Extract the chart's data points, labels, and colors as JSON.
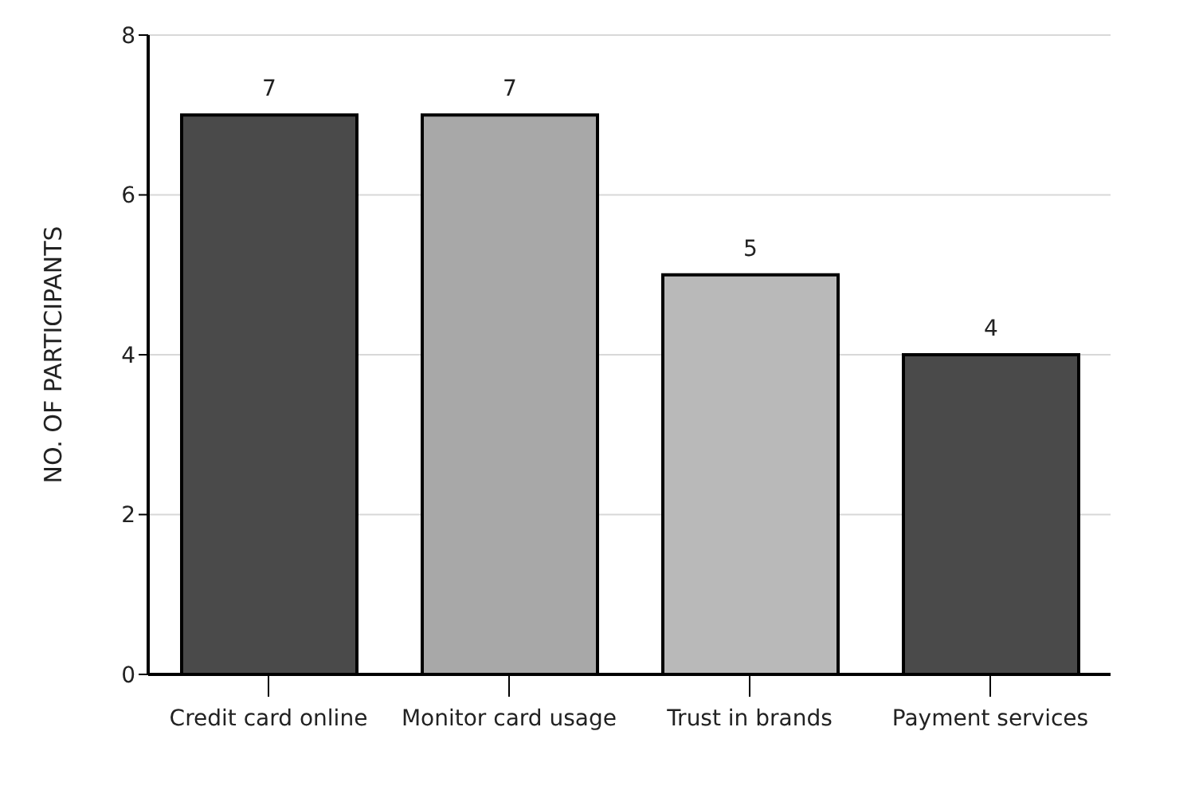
{
  "chart_data": {
    "type": "bar",
    "ylabel": "NO. OF PARTICIPANTS",
    "categories": [
      "Credit card online",
      "Monitor card usage",
      "Trust in brands",
      "Payment services"
    ],
    "values": [
      7,
      7,
      5,
      4
    ],
    "colors": [
      "#4a4a4a",
      "#a8a8a8",
      "#b9b9b9",
      "#4a4a4a"
    ],
    "ylim": [
      0,
      8
    ],
    "yticks": [
      0,
      2,
      4,
      6,
      8
    ],
    "grid": "y",
    "data_labels": true
  }
}
